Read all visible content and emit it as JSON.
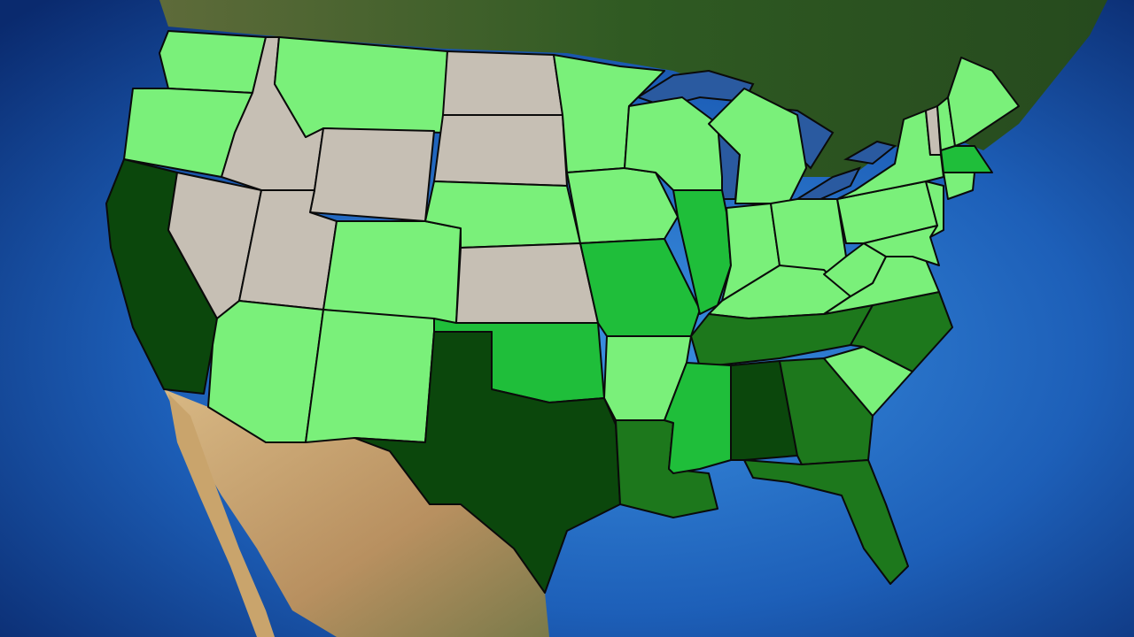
{
  "map": {
    "type": "choropleth",
    "region": "contiguous-united-states",
    "levels": {
      "gray": "#c6bfb4",
      "light": "#7af07a",
      "medium": "#1fbe3a",
      "dark": "#1d781c",
      "darkest": "#0b470c"
    },
    "state_levels": {
      "WA": "light",
      "OR": "light",
      "CA": "darkest",
      "NV": "gray",
      "ID": "gray",
      "MT": "light",
      "WY": "gray",
      "UT": "gray",
      "CO": "light",
      "AZ": "light",
      "NM": "light",
      "ND": "gray",
      "SD": "gray",
      "NE": "light",
      "KS": "gray",
      "OK": "medium",
      "TX": "darkest",
      "MN": "light",
      "IA": "light",
      "MO": "medium",
      "AR": "light",
      "LA": "dark",
      "WI": "light",
      "IL": "medium",
      "MI": "light",
      "IN": "light",
      "OH": "light",
      "KY": "light",
      "TN": "dark",
      "MS": "medium",
      "AL": "darkest",
      "GA": "dark",
      "FL": "dark",
      "SC": "light",
      "NC": "dark",
      "VA": "light",
      "WV": "light",
      "PA": "light",
      "NY": "light",
      "NJ": "light",
      "MD": "light",
      "VT": "gray",
      "NH": "light",
      "ME": "light",
      "MA": "medium",
      "CT": "light"
    },
    "colors": {
      "ocean": "#1d5fb8",
      "ocean_deep": "#0a2a6e",
      "canada_land": "#2f5a22",
      "mexico_land": "#c8a470",
      "lakes": "#2a5aa0"
    }
  }
}
